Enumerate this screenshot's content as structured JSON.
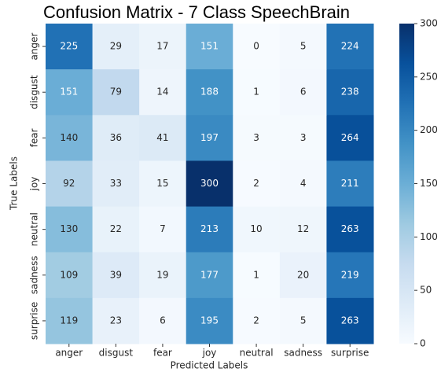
{
  "chart_data": {
    "type": "heatmap",
    "title": "Confusion Matrix - 7 Class SpeechBrain",
    "xlabel": "Predicted Labels",
    "ylabel": "True Labels",
    "x_categories": [
      "anger",
      "disgust",
      "fear",
      "joy",
      "neutral",
      "sadness",
      "surprise"
    ],
    "y_categories": [
      "anger",
      "disgust",
      "fear",
      "joy",
      "neutral",
      "sadness",
      "surprise"
    ],
    "values": [
      [
        225,
        29,
        17,
        151,
        0,
        5,
        224
      ],
      [
        151,
        79,
        14,
        188,
        1,
        6,
        238
      ],
      [
        140,
        36,
        41,
        197,
        3,
        3,
        264
      ],
      [
        92,
        33,
        15,
        300,
        2,
        4,
        211
      ],
      [
        130,
        22,
        7,
        213,
        10,
        12,
        263
      ],
      [
        109,
        39,
        19,
        177,
        1,
        20,
        219
      ],
      [
        119,
        23,
        6,
        195,
        2,
        5,
        263
      ]
    ],
    "zlim": [
      0,
      300
    ],
    "zticks": [
      0,
      50,
      100,
      150,
      200,
      250,
      300
    ],
    "colors": [
      "#f7fbff",
      "#deebf7",
      "#c6dbef",
      "#9ecae1",
      "#6baed6",
      "#4292c6",
      "#2171b5",
      "#08519c",
      "#08306b"
    ]
  }
}
